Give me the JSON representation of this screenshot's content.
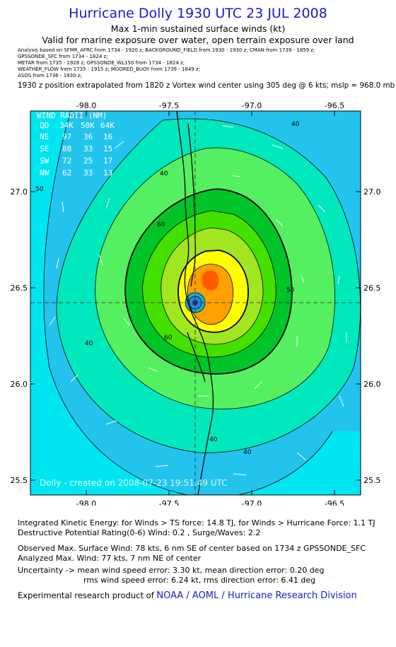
{
  "header": {
    "title": "Hurricane Dolly 1930 UTC 23 JUL 2008",
    "subtitle1": "Max 1-min sustained surface winds (kt)",
    "subtitle2": "Valid for marine exposure over water, open terrain exposure over land"
  },
  "analysis_lines": [
    "Analysis based on    SFMR_AFRC from 1734 - 1920 z;   BACKGROUND_FIELD from 1930 - 1930 z;   CMAN from 1739 - 1859 z;",
    "GPSSONDE_SFC from 1734 - 1824 z;",
    "METAR from 1735 - 1928 z;   GPSSONDE_WL150 from 1734 - 1824 z;",
    "WEATHER_FLOW from 1735 - 1915 z;   MOORED_BUOY from 1739 - 1849 z;",
    "ASOS from 1736 - 1930 z;"
  ],
  "position_line": "1930 z position extrapolated from 1820 z Vortex wind center using 305 deg @ 6 kts; mslp = 968.0 mb",
  "map": {
    "lon_ticks": [
      "-98.0",
      "-97.5",
      "-97.0",
      "-96.5"
    ],
    "lat_ticks": [
      "27.0",
      "26.5",
      "26.0",
      "25.5"
    ],
    "lon_range": [
      -98.3,
      -96.3
    ],
    "lat_range": [
      25.4,
      27.4
    ],
    "center": {
      "lon": -97.33,
      "lat": 26.42
    },
    "contour_labels": [
      "40",
      "40",
      "40",
      "40",
      "40",
      "50",
      "50",
      "60",
      "60"
    ],
    "watermark": "Dolly  -  created on 2008-07-23 19:51:49 UTC",
    "colors": {
      "ocean": "#00e5f0",
      "band_34": "#22c4ee",
      "band_40": "#00e8bb",
      "band_50": "#55f062",
      "band_55": "#00c428",
      "band_60": "#44e000",
      "band_65": "#a2e620",
      "band_70": "#ffff00",
      "band_75": "#ffa000",
      "band_80": "#ff5a00"
    }
  },
  "wind_radii": {
    "title": "WIND RADII (NM)",
    "header": [
      "QD",
      "34K",
      "50K",
      "64K"
    ],
    "rows": [
      [
        "NE",
        "97",
        "36",
        "16"
      ],
      [
        "SE",
        "88",
        "33",
        "15"
      ],
      [
        "SW",
        "72",
        "25",
        "17"
      ],
      [
        "NW",
        "62",
        "33",
        "13"
      ]
    ]
  },
  "footer": {
    "ike": "Integrated Kinetic Energy:  for Winds > TS force: 14.8 TJ,  for Winds > Hurricane Force: 1.1 TJ",
    "dpr": "Destructive Potential Rating(0-6)   Wind: 0.2 , Surge/Waves: 2.2",
    "observed": "Observed Max. Surface Wind: 78 kts, 6 nm SE of center based on 1734 z GPSSONDE_SFC",
    "analyzed": "Analyzed Max. Wind: 77 kts, 7 nm NE of center",
    "uncertainty1": "Uncertainty -> mean wind speed error: 3.30 kt,   mean direction error: 0.20 deg",
    "uncertainty2": "rms wind speed error: 6.24 kt,   rms direction error: 6.41 deg",
    "credit_prefix": "Experimental research product of",
    "credit_link": "NOAA / AOML / Hurricane Research Division"
  }
}
